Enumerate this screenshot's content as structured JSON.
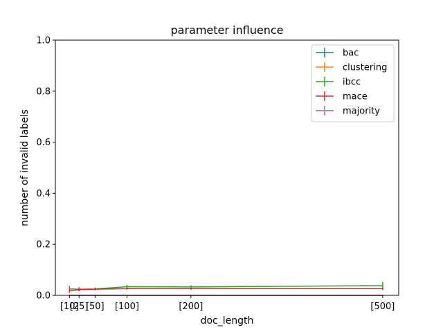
{
  "chart_data": {
    "type": "line",
    "title": "parameter influence",
    "xlabel": "doc_length",
    "ylabel": "number of invalid labels",
    "x": [
      10,
      25,
      50,
      100,
      200,
      500
    ],
    "xtick_labels": [
      "[10]",
      "[25]",
      "[50]",
      "[100]",
      "[200]",
      "[500]"
    ],
    "xlim": [
      -12,
      525
    ],
    "ylim": [
      0,
      1.0
    ],
    "yticks": [
      0.0,
      0.2,
      0.4,
      0.6,
      0.8,
      1.0
    ],
    "ytick_labels": [
      "0.0",
      "0.2",
      "0.4",
      "0.6",
      "0.8",
      "1.0"
    ],
    "grid": false,
    "legend_position": "top-right",
    "series": [
      {
        "name": "bac",
        "color": "#1f77b4",
        "values": [
          0,
          0,
          0,
          0,
          0,
          0
        ],
        "errors": [
          0,
          0,
          0,
          0,
          0,
          0
        ]
      },
      {
        "name": "clustering",
        "color": "#ff7f0e",
        "values": [
          0,
          0,
          0,
          0,
          0,
          0
        ],
        "errors": [
          0,
          0,
          0,
          0,
          0,
          0
        ]
      },
      {
        "name": "ibcc",
        "color": "#2ca02c",
        "values": [
          0.025,
          0.024,
          0.025,
          0.034,
          0.033,
          0.038
        ],
        "errors": [
          0.012,
          0.008,
          0.006,
          0.007,
          0.006,
          0.014
        ]
      },
      {
        "name": "mace",
        "color": "#d62728",
        "values": [
          0.018,
          0.022,
          0.024,
          0.026,
          0.026,
          0.026
        ],
        "errors": [
          0.008,
          0.006,
          0.005,
          0.004,
          0.004,
          0.005
        ]
      },
      {
        "name": "majority",
        "color": "#9467bd",
        "values": [
          0,
          0,
          0,
          0,
          0,
          0
        ],
        "errors": [
          0,
          0,
          0,
          0,
          0,
          0
        ]
      }
    ]
  }
}
